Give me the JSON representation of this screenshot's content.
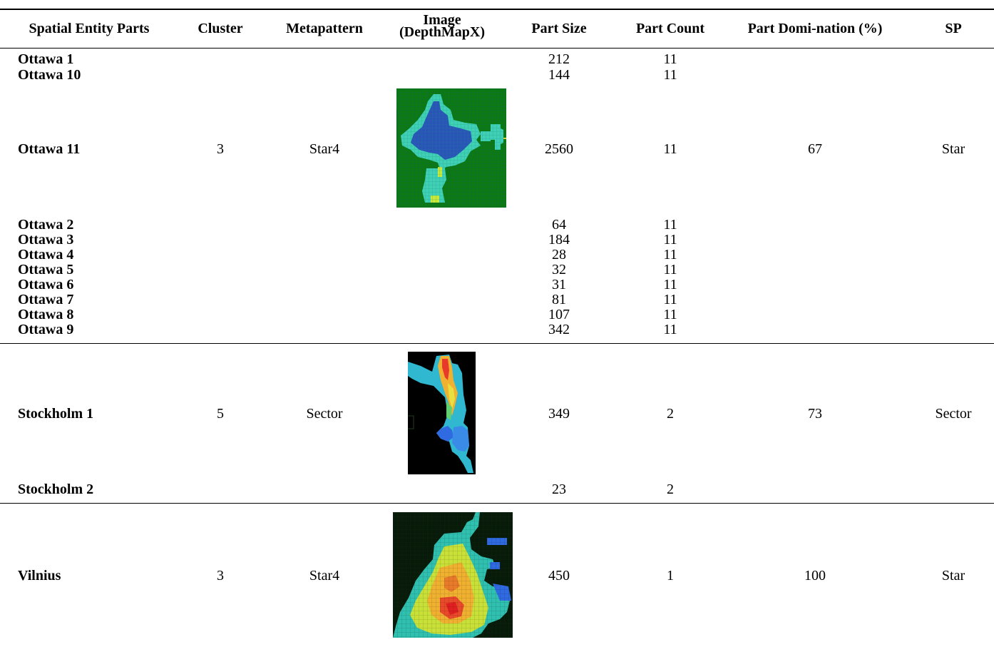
{
  "table": {
    "headers": {
      "parts": "Spatial Entity Parts",
      "cluster": "Cluster",
      "metapattern": "Metapattern",
      "image_line1": "Image",
      "image_line2": "(DepthMapX)",
      "size": "Part Size",
      "count": "Part Count",
      "domination": "Part Domi-nation (%)",
      "sp": "SP"
    },
    "groups": [
      {
        "cluster": "3",
        "metapattern": "Star4",
        "domination": "67",
        "sp": "Star",
        "rows": [
          {
            "name": "Ottawa 1",
            "size": "212",
            "count": "11"
          },
          {
            "name": "Ottawa 10",
            "size": "144",
            "count": "11"
          },
          {
            "name": "Ottawa 11",
            "size": "2560",
            "count": "11"
          },
          {
            "name": "Ottawa 2",
            "size": "64",
            "count": "11"
          },
          {
            "name": "Ottawa 3",
            "size": "184",
            "count": "11"
          },
          {
            "name": "Ottawa 4",
            "size": "28",
            "count": "11"
          },
          {
            "name": "Ottawa 5",
            "size": "32",
            "count": "11"
          },
          {
            "name": "Ottawa 6",
            "size": "31",
            "count": "11"
          },
          {
            "name": "Ottawa 7",
            "size": "81",
            "count": "11"
          },
          {
            "name": "Ottawa 8",
            "size": "107",
            "count": "11"
          },
          {
            "name": "Ottawa 9",
            "size": "342",
            "count": "11"
          }
        ]
      },
      {
        "cluster": "5",
        "metapattern": "Sector",
        "domination": "73",
        "sp": "Sector",
        "rows": [
          {
            "name": "Stockholm 1",
            "size": "349",
            "count": "2"
          },
          {
            "name": "Stockholm 2",
            "size": "23",
            "count": "2"
          }
        ]
      },
      {
        "cluster": "3",
        "metapattern": "Star4",
        "domination": "100",
        "sp": "Star",
        "rows": [
          {
            "name": "Vilnius",
            "size": "450",
            "count": "1"
          }
        ]
      }
    ]
  }
}
